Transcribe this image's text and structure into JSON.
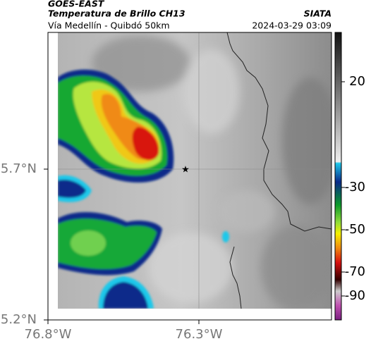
{
  "header": {
    "source": "GOES-EAST",
    "product": "Temperatura de Brillo CH13",
    "route": "Vía Medellín - Quibdó 50km",
    "org": "SIATA",
    "timestamp": "2024-03-29 03:09"
  },
  "map": {
    "yticks": [
      {
        "value": 5.7,
        "label": "5.7°N"
      },
      {
        "value": 5.2,
        "label": "5.2°N"
      }
    ],
    "xticks": [
      {
        "value": -76.8,
        "label": "76.8°W"
      },
      {
        "value": -76.3,
        "label": "76.3°W"
      }
    ]
  },
  "colorbar": {
    "ticks": [
      20,
      -30,
      -50,
      -70,
      -90
    ]
  }
}
